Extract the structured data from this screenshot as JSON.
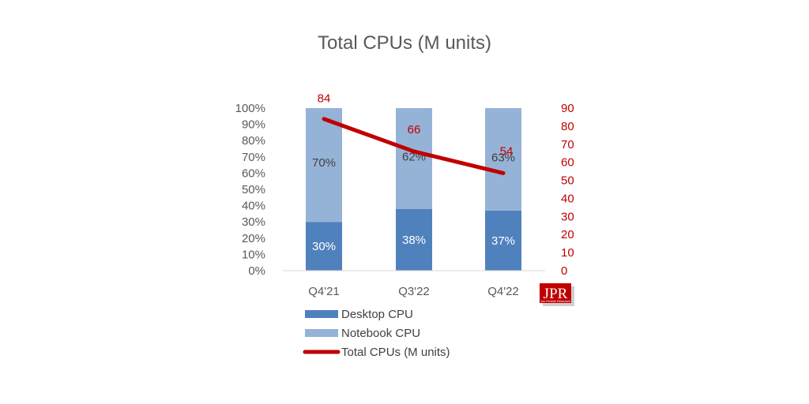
{
  "chart_data": {
    "type": "bar",
    "stacked": true,
    "percent_stacked": true,
    "title": "Total CPUs (M units)",
    "categories": [
      "Q4'21",
      "Q3'22",
      "Q4'22"
    ],
    "series": [
      {
        "name": "Desktop CPU",
        "type": "bar",
        "values": [
          30,
          38,
          37
        ],
        "labels": [
          "30%",
          "38%",
          "37%"
        ],
        "color": "#4f81bd"
      },
      {
        "name": "Notebook CPU",
        "type": "bar",
        "values": [
          70,
          62,
          63
        ],
        "labels": [
          "70%",
          "62%",
          "63%"
        ],
        "color": "#95b3d7"
      },
      {
        "name": "Total CPUs (M units)",
        "type": "line",
        "axis": "right",
        "values": [
          84,
          66,
          54
        ],
        "labels": [
          "84",
          "66",
          "54"
        ],
        "color": "#c00000"
      }
    ],
    "y_left": {
      "ticks": [
        "0%",
        "10%",
        "20%",
        "30%",
        "40%",
        "50%",
        "60%",
        "70%",
        "80%",
        "90%",
        "100%"
      ],
      "ylim": [
        0,
        100
      ]
    },
    "y_right": {
      "ticks": [
        "0",
        "10",
        "20",
        "30",
        "40",
        "50",
        "60",
        "70",
        "80",
        "90"
      ],
      "ylim": [
        0,
        90
      ]
    },
    "grid": false,
    "legend_position": "bottom"
  },
  "logo": {
    "text": "JPR",
    "subtext": "Jon Peddie Research"
  }
}
